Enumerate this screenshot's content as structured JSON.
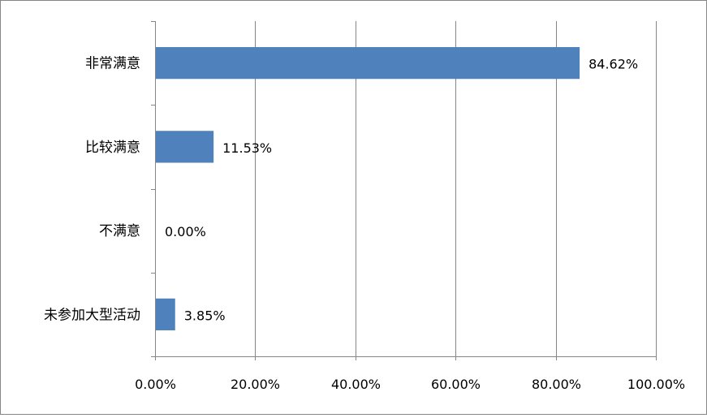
{
  "chart_data": {
    "type": "bar",
    "orientation": "horizontal",
    "categories": [
      "非常满意",
      "比较满意",
      "不满意",
      "未参加大型活动"
    ],
    "values": [
      84.62,
      11.53,
      0.0,
      3.85
    ],
    "value_labels": [
      "84.62%",
      "11.53%",
      "0.00%",
      "3.85%"
    ],
    "xlim": [
      0,
      100
    ],
    "x_ticks": [
      0,
      20,
      40,
      60,
      80,
      100
    ],
    "x_tick_labels": [
      "0.00%",
      "20.00%",
      "40.00%",
      "60.00%",
      "80.00%",
      "100.00%"
    ],
    "title": "",
    "xlabel": "",
    "ylabel": "",
    "grid": "vertical",
    "legend": "none",
    "bar_color": "#4F81BD",
    "grid_color": "#868686"
  }
}
